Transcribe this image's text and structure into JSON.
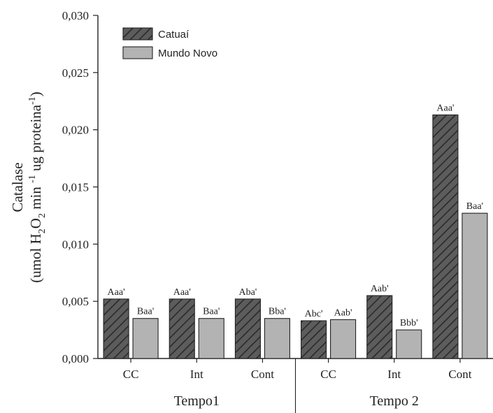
{
  "chart_data": {
    "type": "bar",
    "ylim": [
      0,
      0.03
    ],
    "yticks": [
      "0,000",
      "0,005",
      "0,010",
      "0,015",
      "0,020",
      "0,025",
      "0,030"
    ],
    "ylabel": {
      "line1": "Catalase",
      "line2_parts": [
        "(umol H",
        "2",
        "O",
        "2",
        " min ",
        "-1",
        " ug proteina",
        "-1",
        ")"
      ]
    },
    "groups": [
      {
        "label": "Tempo1",
        "categories": [
          "CC",
          "Int",
          "Cont"
        ]
      },
      {
        "label": "Tempo 2",
        "categories": [
          "CC",
          "Int",
          "Cont"
        ]
      }
    ],
    "series": [
      {
        "name": "Catuaí",
        "color": "#5c5c5c",
        "pattern": "hatch",
        "values": [
          0.0052,
          0.0052,
          0.0052,
          0.0033,
          0.0055,
          0.0213
        ],
        "labels": [
          "Aaa'",
          "Aaa'",
          "Aba'",
          "Abc'",
          "Aab'",
          "Aaa'"
        ]
      },
      {
        "name": "Mundo Novo",
        "color": "#b3b3b3",
        "pattern": "solid",
        "values": [
          0.0035,
          0.0035,
          0.0035,
          0.0034,
          0.0025,
          0.0127
        ],
        "labels": [
          "Baa'",
          "Baa'",
          "Bba'",
          "Aab'",
          "Bbb'",
          "Baa'"
        ]
      }
    ],
    "legend_position": "top-left",
    "grid": false
  }
}
